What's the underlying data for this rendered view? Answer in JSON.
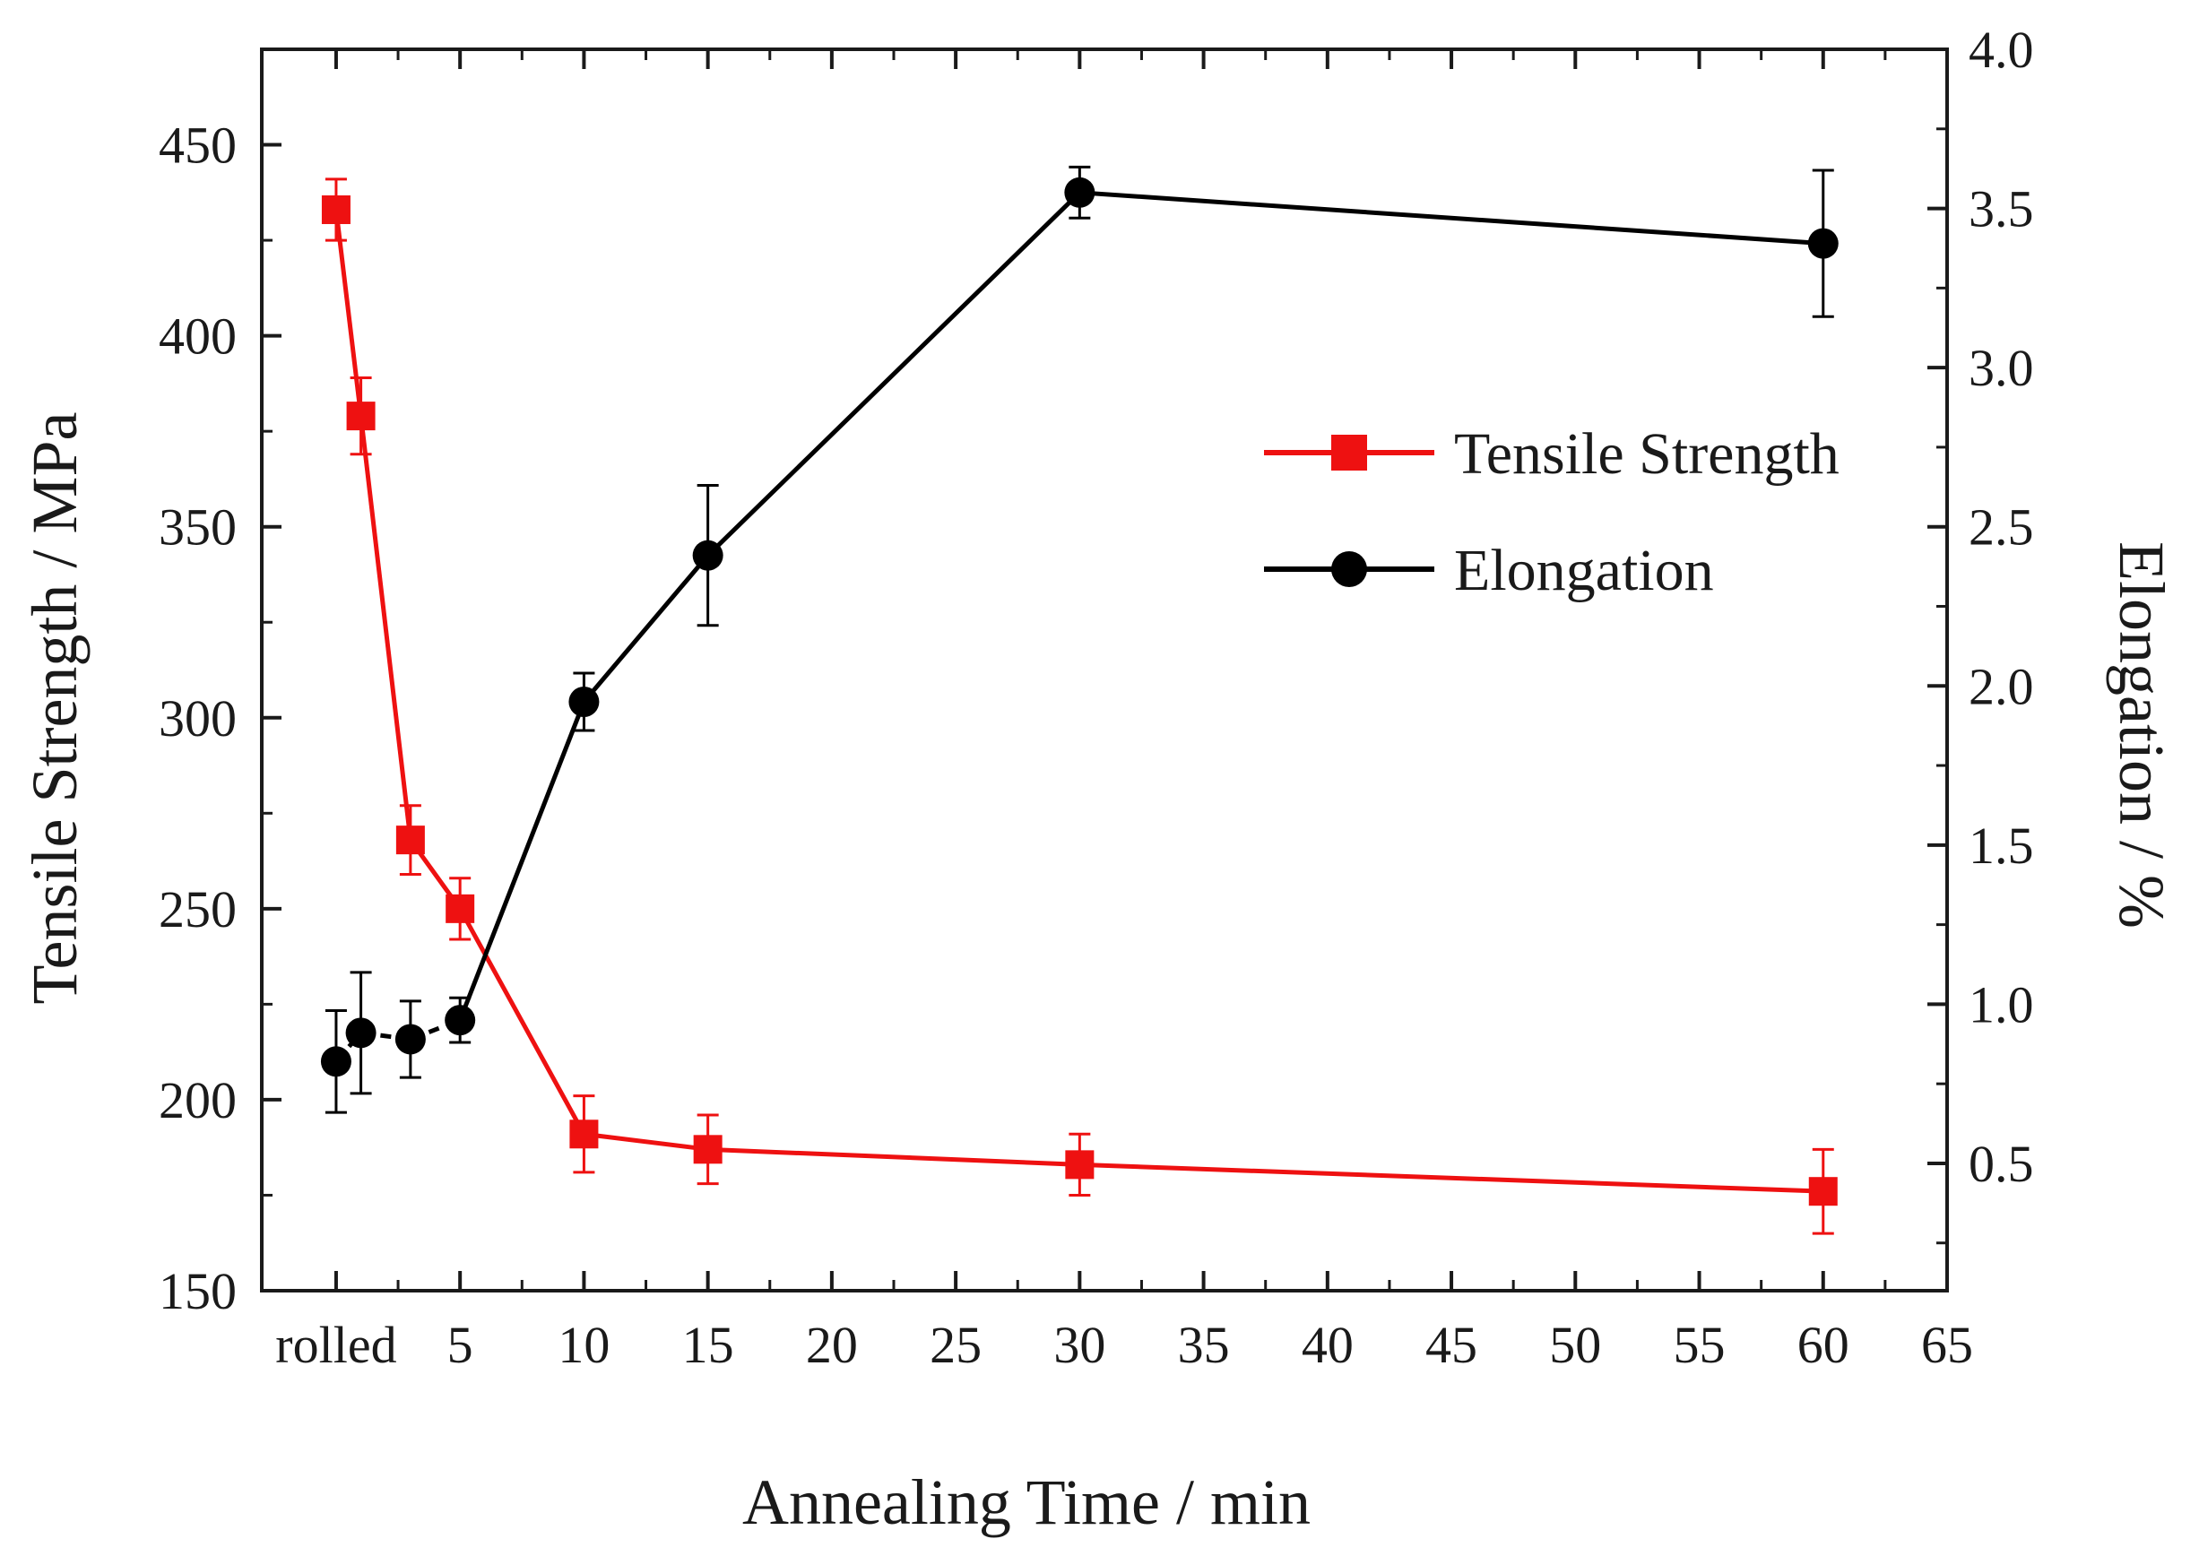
{
  "chart_data": {
    "type": "line",
    "x_axis": {
      "title": "Annealing Time / min",
      "range": [
        -3,
        65
      ],
      "ticks": [
        {
          "value": 0,
          "label": "rolled"
        },
        {
          "value": 5,
          "label": "5"
        },
        {
          "value": 10,
          "label": "10"
        },
        {
          "value": 15,
          "label": "15"
        },
        {
          "value": 20,
          "label": "20"
        },
        {
          "value": 25,
          "label": "25"
        },
        {
          "value": 30,
          "label": "30"
        },
        {
          "value": 35,
          "label": "35"
        },
        {
          "value": 40,
          "label": "40"
        },
        {
          "value": 45,
          "label": "45"
        },
        {
          "value": 50,
          "label": "50"
        },
        {
          "value": 55,
          "label": "55"
        },
        {
          "value": 60,
          "label": "60"
        },
        {
          "value": 65,
          "label": "65"
        }
      ]
    },
    "y_left": {
      "title": "Tensile Strength / MPa",
      "range": [
        150,
        475
      ],
      "ticks": [
        150,
        200,
        250,
        300,
        350,
        400,
        450
      ]
    },
    "y_right": {
      "title": "Elongation / %",
      "range": [
        0.1,
        4.0
      ],
      "ticks": [
        "0.5",
        "1.0",
        "1.5",
        "2.0",
        "2.5",
        "3.0",
        "3.5",
        "4.0"
      ]
    },
    "legend": {
      "position": "upper-right",
      "entries": [
        {
          "label": "Tensile Strength",
          "marker": "square",
          "color": "#ee1111"
        },
        {
          "label": "Elongation",
          "marker": "circle",
          "color": "#000000"
        }
      ]
    },
    "series": [
      {
        "name": "Tensile Strength",
        "axis": "left",
        "color": "#ee1111",
        "marker": "square",
        "points": [
          {
            "x": 0,
            "y": 433,
            "err": 8
          },
          {
            "x": 1,
            "y": 379,
            "err": 10
          },
          {
            "x": 3,
            "y": 268,
            "err": 9
          },
          {
            "x": 5,
            "y": 250,
            "err": 8
          },
          {
            "x": 10,
            "y": 191,
            "err": 10
          },
          {
            "x": 15,
            "y": 187,
            "err": 9
          },
          {
            "x": 30,
            "y": 183,
            "err": 8
          },
          {
            "x": 60,
            "y": 176,
            "err": 11
          }
        ]
      },
      {
        "name": "Elongation",
        "axis": "right",
        "color": "#000000",
        "marker": "circle",
        "dashed_until_x": 5,
        "points": [
          {
            "x": 0,
            "y": 0.82,
            "err": 0.16
          },
          {
            "x": 1,
            "y": 0.91,
            "err": 0.19
          },
          {
            "x": 3,
            "y": 0.89,
            "err": 0.12
          },
          {
            "x": 5,
            "y": 0.95,
            "err": 0.07
          },
          {
            "x": 10,
            "y": 1.95,
            "err": 0.09
          },
          {
            "x": 15,
            "y": 2.41,
            "err": 0.22
          },
          {
            "x": 30,
            "y": 3.55,
            "err": 0.08
          },
          {
            "x": 60,
            "y": 3.39,
            "err": 0.23
          }
        ]
      }
    ]
  }
}
